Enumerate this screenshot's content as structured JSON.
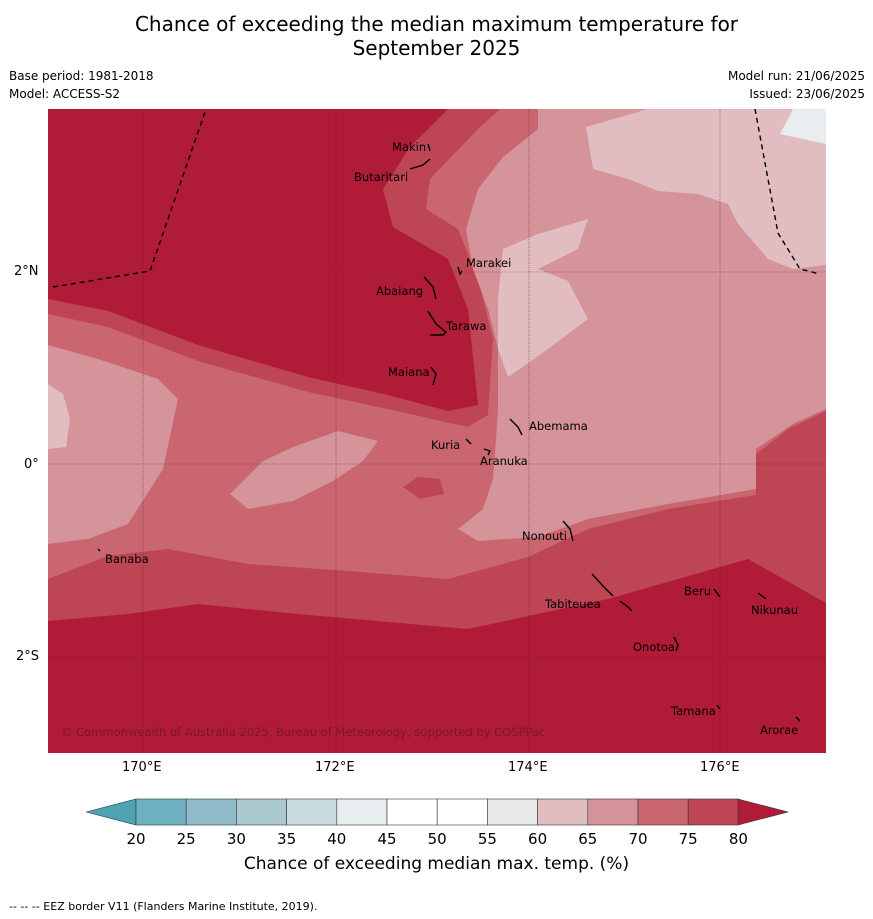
{
  "title": {
    "line1": "Chance of exceeding the median maximum temperature for",
    "line2": "September 2025"
  },
  "meta_left": {
    "base_period": "Base period: 1981-2018",
    "model": "Model: ACCESS-S2"
  },
  "meta_right": {
    "model_run": "Model run: 21/06/2025",
    "issued": "Issued: 23/06/2025"
  },
  "map": {
    "lat_labels": [
      "2°N",
      "0°",
      "2°S"
    ],
    "lon_labels": [
      "170°E",
      "172°E",
      "174°E",
      "176°E"
    ],
    "copyright": "© Commonwealth of Australia 2025, Bureau of Meteorology, supported by COSPPac",
    "islands": [
      "Makin",
      "Butaritari",
      "Marakei",
      "Abaiang",
      "Tarawa",
      "Maiana",
      "Abemama",
      "Kuria",
      "Aranuka",
      "Banaba",
      "Nonouti",
      "Tabiteuea",
      "Beru",
      "Nikunau",
      "Onotoa",
      "Tamana",
      "Arorae"
    ]
  },
  "colorbar": {
    "ticks": [
      "20",
      "25",
      "30",
      "35",
      "40",
      "45",
      "50",
      "55",
      "60",
      "65",
      "70",
      "75",
      "80"
    ],
    "title": "Chance of exceeding median max. temp. (%)",
    "colors": {
      "under": "#4da3b4",
      "c20_25": "#6fb0c0",
      "c25_30": "#8fbcc8",
      "c30_35": "#aacad0",
      "c35_40": "#c9dbdf",
      "c40_45": "#e8eef0",
      "c45_50": "#ffffff",
      "c50_55": "#ffffff",
      "c55_60": "#e8e8e8",
      "c60_65": "#e1bcc0",
      "c65_70": "#d5939a",
      "c70_75": "#c9666f",
      "c75_80": "#be4554",
      "over": "#b01c38"
    }
  },
  "footnote": "--  --  -- EEZ border V11 (Flanders Marine Institute, 2019)."
}
